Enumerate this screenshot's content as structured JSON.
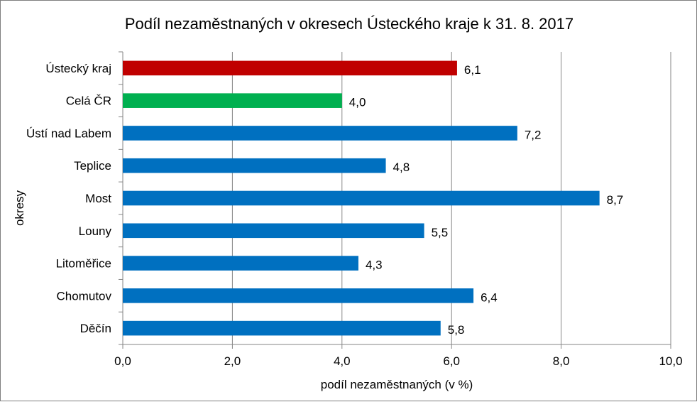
{
  "chart_data": {
    "type": "bar",
    "orientation": "horizontal",
    "title": "Podíl nezaměstnaných v okresech Ústeckého kraje k 31. 8. 2017",
    "xlabel": "podíl nezaměstnaných (v %)",
    "ylabel": "okresy",
    "xlim": [
      0,
      10
    ],
    "xticks": [
      0,
      2,
      4,
      6,
      8,
      10
    ],
    "xtick_labels": [
      "0,0",
      "2,0",
      "4,0",
      "6,0",
      "8,0",
      "10,0"
    ],
    "grid": true,
    "legend": "none",
    "categories": [
      "Ústecký kraj",
      "Celá ČR",
      "Ústí nad Labem",
      "Teplice",
      "Most",
      "Louny",
      "Litoměřice",
      "Chomutov",
      "Děčín"
    ],
    "values": [
      6.1,
      4.0,
      7.2,
      4.8,
      8.7,
      5.5,
      4.3,
      6.4,
      5.8
    ],
    "value_labels": [
      "6,1",
      "4,0",
      "7,2",
      "4,8",
      "8,7",
      "5,5",
      "4,3",
      "6,4",
      "5,8"
    ],
    "bar_colors": [
      "#c00000",
      "#00b050",
      "#0070c0",
      "#0070c0",
      "#0070c0",
      "#0070c0",
      "#0070c0",
      "#0070c0",
      "#0070c0"
    ]
  }
}
